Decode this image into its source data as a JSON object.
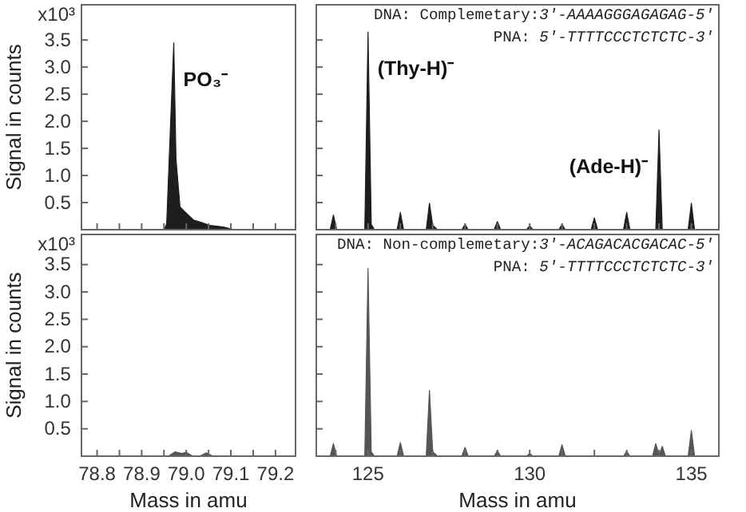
{
  "chart_data": [
    {
      "type": "area",
      "ylabel": "Signal in counts",
      "xlim": [
        78.765,
        79.245
      ],
      "ylim": [
        0,
        4.15
      ],
      "xticks": [
        78.8,
        {
          "value": 78.85,
          "label": null
        },
        78.9,
        {
          "value": 78.95,
          "label": null
        },
        79,
        {
          "value": 79.05,
          "label": null
        },
        79.1,
        {
          "value": 79.15,
          "label": null
        },
        79.2
      ],
      "yticks": [
        0.5,
        {
          "value": 1,
          "label": "1.0"
        },
        1.5,
        {
          "value": 2,
          "label": "2.0"
        },
        2.5,
        {
          "value": 3,
          "label": "3.0"
        },
        3.5
      ],
      "tick_labels": "y",
      "series": [
        {
          "color": "#1e1e1e",
          "x": [
            78.765,
            78.95,
            78.956,
            78.965,
            78.972,
            78.977,
            78.986,
            78.998,
            79.016,
            79.035,
            79.053,
            79.083,
            79.107,
            79.245
          ],
          "values": [
            0,
            0,
            0.1,
            2.0,
            3.45,
            1.3,
            0.42,
            0.32,
            0.18,
            0.13,
            0.08,
            0.05,
            0,
            0
          ]
        }
      ],
      "annotations": [
        "x10³",
        {
          "text": "PO₃⁻",
          "x": 78.972,
          "y": 3.45
        }
      ]
    },
    {
      "type": "area",
      "xlim": [
        123.4,
        135.85
      ],
      "ylim": [
        0,
        4.15
      ],
      "xticks": [
        {
          "value": 124,
          "label": null
        },
        125,
        {
          "value": 126,
          "label": null
        },
        {
          "value": 127,
          "label": null
        },
        {
          "value": 128,
          "label": null
        },
        {
          "value": 129,
          "label": null
        },
        130,
        {
          "value": 131,
          "label": null
        },
        {
          "value": 132,
          "label": null
        },
        {
          "value": 133,
          "label": null
        },
        {
          "value": 134,
          "label": null
        },
        135
      ],
      "yticks": [
        0.5,
        1,
        1.5,
        2,
        2.5,
        3,
        3.5
      ],
      "tick_labels": false,
      "series": [
        {
          "color": "#1e1e1e",
          "x": [
            123.4,
            123.83,
            123.93,
            124.03,
            124.9,
            125.0,
            125.1,
            125.2,
            125.9,
            126.0,
            126.1,
            126.8,
            126.9,
            127.0,
            127.15,
            127.9,
            128.0,
            128.1,
            128.9,
            129.0,
            129.1,
            129.9,
            130.0,
            130.1,
            130.9,
            131.0,
            131.1,
            131.9,
            132.0,
            132.1,
            132.9,
            133.0,
            133.1,
            133.9,
            134.0,
            134.1,
            134.9,
            135.0,
            135.1,
            135.85
          ],
          "values": [
            0,
            0,
            0.27,
            0,
            0,
            3.65,
            0.1,
            0,
            0,
            0.32,
            0,
            0,
            0.49,
            0.08,
            0,
            0,
            0.1,
            0,
            0,
            0.15,
            0,
            0,
            0.07,
            0,
            0,
            0.1,
            0,
            0,
            0.22,
            0,
            0,
            0.32,
            0,
            0,
            1.84,
            0,
            0,
            0.49,
            0,
            0
          ]
        }
      ],
      "annotations": [
        "DNA: Complemetary:3'-AAAAGGGAGAGAG-5'",
        "PNA: 5'-TTTTCCCTCTCTC-3'",
        {
          "text": "(Thy-H)⁻",
          "x": 125.0,
          "y": 3.65
        },
        {
          "text": "(Ade-H)⁻",
          "x": 134.0,
          "y": 1.84
        }
      ]
    },
    {
      "type": "area",
      "xlabel": "Mass in amu",
      "ylabel": "Signal in counts",
      "xlim": [
        78.765,
        79.245
      ],
      "ylim": [
        0,
        4.05
      ],
      "xticks": [
        78.8,
        {
          "value": 78.85,
          "label": null
        },
        78.9,
        {
          "value": 78.95,
          "label": null
        },
        {
          "value": 79,
          "label": "79.0"
        },
        {
          "value": 79.05,
          "label": null
        },
        79.1,
        {
          "value": 79.15,
          "label": null
        },
        79.2
      ],
      "yticks": [
        0.5,
        {
          "value": 1,
          "label": "1.0"
        },
        1.5,
        {
          "value": 2,
          "label": "2.0"
        },
        2.5,
        {
          "value": 3,
          "label": "3.0"
        },
        3.5
      ],
      "series": [
        {
          "color": "#555555",
          "x": [
            78.765,
            78.96,
            78.975,
            78.99,
            79.0,
            79.015,
            79.03,
            79.045,
            79.06,
            79.245
          ],
          "values": [
            0,
            0,
            0.08,
            0.05,
            0.07,
            0,
            0,
            0.06,
            0,
            0
          ]
        }
      ],
      "annotations": [
        "x10³"
      ]
    },
    {
      "type": "area",
      "xlabel": "Mass in amu",
      "xlim": [
        123.4,
        135.85
      ],
      "ylim": [
        0,
        4.05
      ],
      "xticks": [
        {
          "value": 124,
          "label": null
        },
        125,
        {
          "value": 126,
          "label": null
        },
        {
          "value": 127,
          "label": null
        },
        {
          "value": 128,
          "label": null
        },
        {
          "value": 129,
          "label": null
        },
        130,
        {
          "value": 131,
          "label": null
        },
        {
          "value": 132,
          "label": null
        },
        {
          "value": 133,
          "label": null
        },
        {
          "value": 134,
          "label": null
        },
        135
      ],
      "yticks": [
        0.5,
        1,
        1.5,
        2,
        2.5,
        3,
        3.5
      ],
      "tick_labels": "x",
      "series": [
        {
          "color": "#555555",
          "x": [
            123.4,
            123.83,
            123.93,
            124.03,
            124.9,
            125.0,
            125.1,
            125.2,
            125.9,
            126.0,
            126.1,
            126.8,
            126.9,
            127.0,
            127.15,
            127.9,
            128.0,
            128.1,
            128.9,
            129.0,
            129.1,
            129.9,
            130.0,
            130.1,
            130.9,
            131.0,
            131.1,
            132.9,
            133.0,
            133.1,
            133.8,
            133.9,
            134.0,
            134.1,
            134.2,
            134.9,
            135.0,
            135.1,
            135.85
          ],
          "values": [
            0,
            0,
            0.23,
            0,
            0,
            3.43,
            0.08,
            0,
            0,
            0.25,
            0,
            0,
            1.2,
            0.08,
            0,
            0,
            0.16,
            0,
            0,
            0.1,
            0,
            0,
            0.05,
            0,
            0,
            0.21,
            0,
            0,
            0.09,
            0,
            0,
            0.23,
            0.02,
            0.18,
            0,
            0,
            0.47,
            0,
            0
          ]
        }
      ],
      "annotations": [
        "DNA: Non-complemetary:3'-ACAGACACGACAC-5'",
        "PNA: 5'-TTTTCCCTCTCTC-3'"
      ]
    }
  ]
}
